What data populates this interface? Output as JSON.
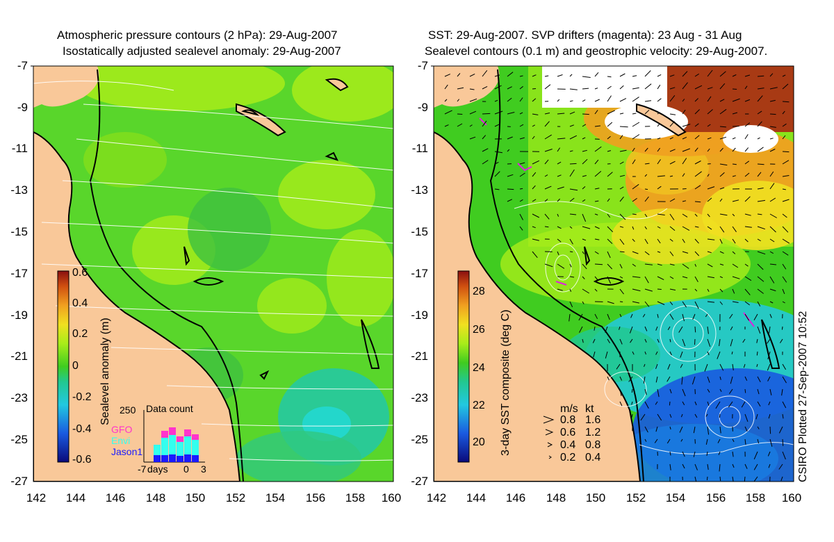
{
  "left_panel": {
    "title_line1": "Atmospheric pressure contours (2 hPa): 29-Aug-2007",
    "title_line2": "Isostatically adjusted sealevel anomaly: 29-Aug-2007",
    "colorbar_label": "Sealevel anomaly (m)",
    "colorbar_ticks": [
      "0.6",
      "0.4",
      "0.2",
      "0",
      "-0.2",
      "-0.4",
      "-0.6"
    ],
    "inset": {
      "ymax_label": "250",
      "title": "Data count",
      "legend": [
        {
          "name": "GFO",
          "color": "#ff33cc"
        },
        {
          "name": "Envi",
          "color": "#33ffee"
        },
        {
          "name": "Jason1",
          "color": "#1a1aff"
        }
      ],
      "x_labels": [
        "-7",
        "days",
        "0",
        "3"
      ]
    }
  },
  "right_panel": {
    "title_line1": "SST: 29-Aug-2007. SVP drifters (magenta): 23 Aug - 31 Aug",
    "title_line2": "Sealevel contours (0.1 m) and geostrophic velocity: 29-Aug-2007.",
    "colorbar_label": "3-day SST composite (deg C)",
    "colorbar_ticks": [
      "28",
      "26",
      "24",
      "22",
      "20"
    ],
    "velocity_key": {
      "header_ms": "m/s",
      "header_kt": "kt",
      "rows": [
        {
          "ms": "0.8",
          "kt": "1.6"
        },
        {
          "ms": "0.6",
          "kt": "1.2"
        },
        {
          "ms": "0.4",
          "kt": "0.8"
        },
        {
          "ms": "0.2",
          "kt": "0.4"
        }
      ]
    },
    "credit": "CSIRO Plotted 27-Sep-2007 10:52"
  },
  "axes": {
    "lat_ticks": [
      "-7",
      "-9",
      "-11",
      "-13",
      "-15",
      "-17",
      "-19",
      "-21",
      "-23",
      "-25",
      "-27"
    ],
    "lon_ticks": [
      "142",
      "144",
      "146",
      "148",
      "150",
      "152",
      "154",
      "156",
      "158",
      "160"
    ]
  },
  "colors": {
    "land": "#f9c899",
    "slac_green": "#59d62b",
    "slac_light": "#a8ec1a",
    "ocean_cyan": "#22c8a8",
    "sst_red": "#a83a14",
    "sst_orange": "#f0a020",
    "sst_blue": "#1a5ae0",
    "contour": "#ffffff",
    "coast": "#000000"
  }
}
